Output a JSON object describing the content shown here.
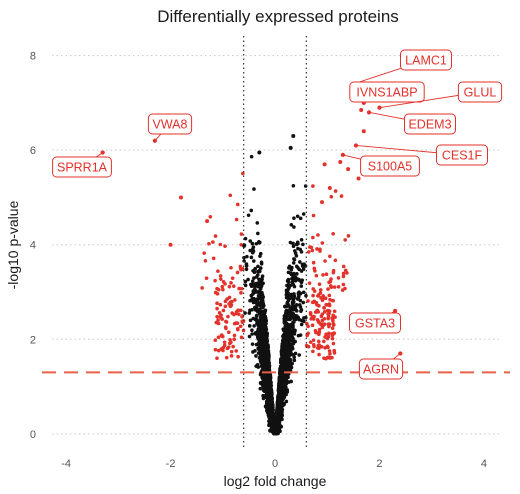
{
  "chart_data": {
    "type": "scatter",
    "title": "Differentially expressed proteins",
    "xlabel": "log2 fold change",
    "ylabel": "-log10 p-value",
    "xlim": [
      -4.5,
      4.5
    ],
    "ylim": [
      -0.3,
      8.5
    ],
    "x_ticks": [
      -4,
      -2,
      0,
      2,
      4
    ],
    "y_ticks": [
      0,
      2,
      4,
      6,
      8
    ],
    "grid": "dotted",
    "vlines": [
      -0.6,
      0.6
    ],
    "hline": 1.3,
    "colors": {
      "significant": "#e3322b",
      "not_significant": "#111111",
      "threshold_line": "#e8604a",
      "label": "#e3322b",
      "grid": "#c8c8c8"
    },
    "labeled_points": [
      {
        "name": "LAMC1",
        "x": 1.5,
        "y": 7.4
      },
      {
        "name": "IVNS1ABP",
        "x": 1.7,
        "y": 7.0
      },
      {
        "name": "GLUL",
        "x": 2.0,
        "y": 6.9
      },
      {
        "name": "EDEM3",
        "x": 1.8,
        "y": 6.8
      },
      {
        "name": "VWA8",
        "x": -2.3,
        "y": 6.2
      },
      {
        "name": "SPRR1A",
        "x": -3.3,
        "y": 5.95
      },
      {
        "name": "CES1F",
        "x": 1.55,
        "y": 6.1
      },
      {
        "name": "S100A5",
        "x": 1.3,
        "y": 5.9
      },
      {
        "name": "GSTA3",
        "x": 2.3,
        "y": 2.6
      },
      {
        "name": "AGRN",
        "x": 2.4,
        "y": 1.7
      }
    ]
  }
}
